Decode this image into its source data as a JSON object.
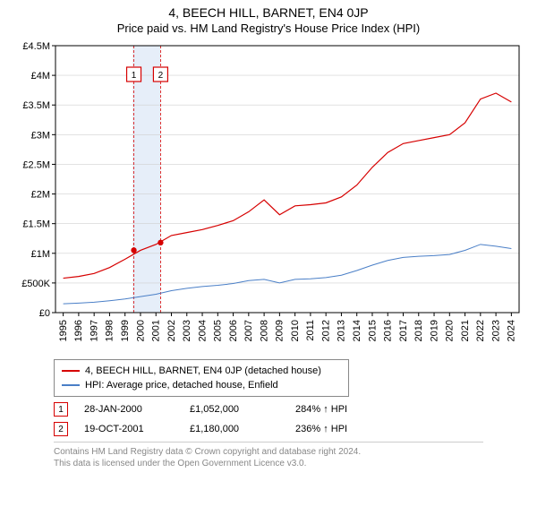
{
  "title_line1": "4, BEECH HILL, BARNET, EN4 0JP",
  "title_line2": "Price paid vs. HM Land Registry's House Price Index (HPI)",
  "chart": {
    "type": "line",
    "background_color": "#ffffff",
    "plot_border_color": "#000000",
    "grid_color": "#d0d0d0",
    "x_years": [
      1995,
      1996,
      1997,
      1998,
      1999,
      2000,
      2001,
      2002,
      2003,
      2004,
      2005,
      2006,
      2007,
      2008,
      2009,
      2010,
      2011,
      2012,
      2013,
      2014,
      2015,
      2016,
      2017,
      2018,
      2019,
      2020,
      2021,
      2022,
      2023,
      2024
    ],
    "ylim": [
      0,
      4500000
    ],
    "yticks": [
      0,
      500000,
      1000000,
      1500000,
      2000000,
      2500000,
      3000000,
      3500000,
      4000000,
      4500000
    ],
    "ytick_labels": [
      "£0",
      "£500K",
      "£1M",
      "£1.5M",
      "£2M",
      "£2.5M",
      "£3M",
      "£3.5M",
      "£4M",
      "£4.5M"
    ],
    "xtick_label_rotation": -90,
    "tick_fontsize": 11,
    "series": [
      {
        "name_key": "legend.series1",
        "color": "#d60000",
        "line_width": 1.2,
        "data_per_year": [
          580000,
          610000,
          660000,
          760000,
          900000,
          1050000,
          1150000,
          1300000,
          1350000,
          1400000,
          1470000,
          1550000,
          1700000,
          1900000,
          1650000,
          1800000,
          1820000,
          1850000,
          1950000,
          2150000,
          2450000,
          2700000,
          2850000,
          2900000,
          2950000,
          3000000,
          3200000,
          3600000,
          3700000,
          3550000
        ]
      },
      {
        "name_key": "legend.series2",
        "color": "#4a7fc7",
        "line_width": 1.0,
        "data_per_year": [
          150000,
          160000,
          175000,
          200000,
          230000,
          270000,
          310000,
          370000,
          410000,
          440000,
          460000,
          490000,
          540000,
          560000,
          500000,
          560000,
          570000,
          590000,
          630000,
          710000,
          800000,
          880000,
          930000,
          950000,
          960000,
          980000,
          1050000,
          1150000,
          1120000,
          1080000
        ]
      }
    ],
    "highlight_band": {
      "from_year": 2000,
      "to_year": 2001.8,
      "fill": "#e6eef9"
    },
    "sale_markers": [
      {
        "label": "1",
        "year": 2000.07,
        "price": 1052000,
        "color": "#d60000"
      },
      {
        "label": "2",
        "year": 2001.8,
        "price": 1180000,
        "color": "#d60000"
      }
    ],
    "sale_callouts": [
      {
        "label": "1",
        "year": 2000.07,
        "box_color": "#d60000"
      },
      {
        "label": "2",
        "year": 2001.8,
        "box_color": "#d60000"
      }
    ]
  },
  "legend": {
    "series1": "4, BEECH HILL, BARNET, EN4 0JP (detached house)",
    "series2": "HPI: Average price, detached house, Enfield"
  },
  "sales_table": {
    "rows": [
      {
        "marker": "1",
        "marker_color": "#d60000",
        "date": "28-JAN-2000",
        "price": "£1,052,000",
        "pct": "284% ↑ HPI"
      },
      {
        "marker": "2",
        "marker_color": "#d60000",
        "date": "19-OCT-2001",
        "price": "£1,180,000",
        "pct": "236% ↑ HPI"
      }
    ]
  },
  "footnote": {
    "line1": "Contains HM Land Registry data © Crown copyright and database right 2024.",
    "line2": "This data is licensed under the Open Government Licence v3.0."
  }
}
